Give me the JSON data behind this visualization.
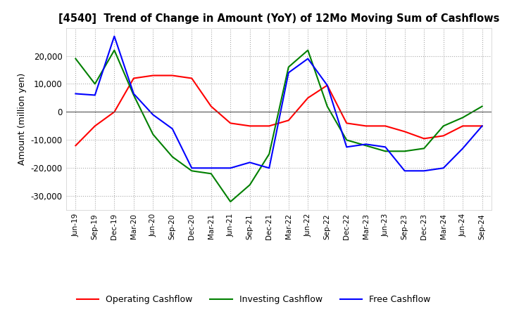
{
  "title": "[4540]  Trend of Change in Amount (YoY) of 12Mo Moving Sum of Cashflows",
  "ylabel": "Amount (million yen)",
  "ylim": [
    -35000,
    30000
  ],
  "yticks": [
    -30000,
    -20000,
    -10000,
    0,
    10000,
    20000
  ],
  "legend_labels": [
    "Operating Cashflow",
    "Investing Cashflow",
    "Free Cashflow"
  ],
  "legend_colors": [
    "#ff0000",
    "#008000",
    "#0000ff"
  ],
  "x_labels": [
    "Jun-19",
    "Sep-19",
    "Dec-19",
    "Mar-20",
    "Jun-20",
    "Sep-20",
    "Dec-20",
    "Mar-21",
    "Jun-21",
    "Sep-21",
    "Dec-21",
    "Mar-22",
    "Jun-22",
    "Sep-22",
    "Dec-22",
    "Mar-23",
    "Jun-23",
    "Sep-23",
    "Dec-23",
    "Mar-24",
    "Jun-24",
    "Sep-24"
  ],
  "operating": [
    -12000,
    -5000,
    0,
    12000,
    13000,
    13000,
    12000,
    2000,
    -4000,
    -5000,
    -5000,
    -3000,
    5000,
    9500,
    -4000,
    -5000,
    -5000,
    -7000,
    -9500,
    -8500,
    -5000,
    -5000
  ],
  "investing": [
    19000,
    10000,
    22000,
    6000,
    -8000,
    -16000,
    -21000,
    -22000,
    -32000,
    -26000,
    -15000,
    16000,
    22000,
    2000,
    -10000,
    -12000,
    -14000,
    -14000,
    -13000,
    -5000,
    -2000,
    2000
  ],
  "free": [
    6500,
    6000,
    27000,
    6500,
    -1000,
    -6000,
    -20000,
    -20000,
    -20000,
    -18000,
    -20000,
    14000,
    19000,
    9500,
    -12500,
    -11500,
    -12500,
    -21000,
    -21000,
    -20000,
    -13000,
    -5000
  ]
}
